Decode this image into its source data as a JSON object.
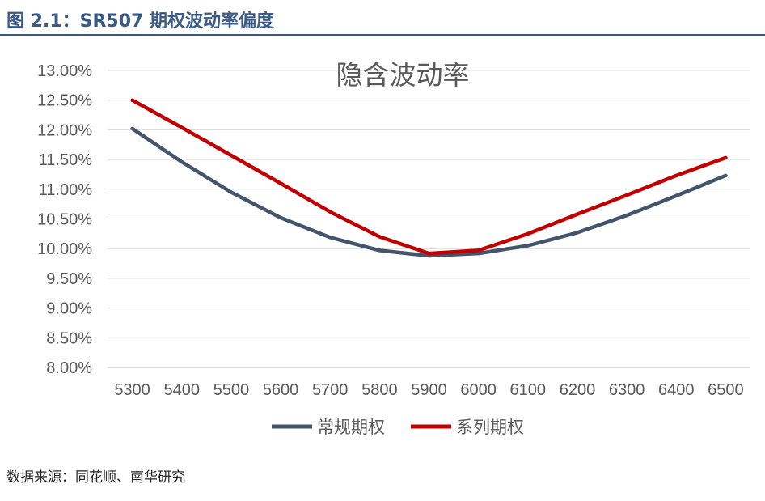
{
  "figure_title": "图 2.1：SR507 期权波动率偏度",
  "source_note": "数据来源：同花顺、南华研究",
  "chart_data": {
    "type": "line",
    "title": "隐含波动率",
    "xlabel": "",
    "ylabel": "",
    "categories": [
      "5300",
      "5400",
      "5500",
      "5600",
      "5700",
      "5800",
      "5900",
      "6000",
      "6100",
      "6200",
      "6300",
      "6400",
      "6500"
    ],
    "ylim": [
      8.0,
      13.0
    ],
    "yticks": [
      "8.00%",
      "8.50%",
      "9.00%",
      "9.50%",
      "10.00%",
      "10.50%",
      "11.00%",
      "11.50%",
      "12.00%",
      "12.50%",
      "13.00%"
    ],
    "grid": true,
    "legend_position": "bottom",
    "series": [
      {
        "name": "常规期权",
        "color": "#44546a",
        "values": [
          12.02,
          11.46,
          10.95,
          10.52,
          10.19,
          9.97,
          9.88,
          9.92,
          10.05,
          10.27,
          10.56,
          10.89,
          11.23
        ]
      },
      {
        "name": "系列期权",
        "color": "#c00000",
        "values": [
          12.5,
          12.04,
          11.57,
          11.1,
          10.62,
          10.2,
          9.92,
          9.97,
          10.25,
          10.58,
          10.9,
          11.23,
          11.53
        ]
      }
    ]
  }
}
